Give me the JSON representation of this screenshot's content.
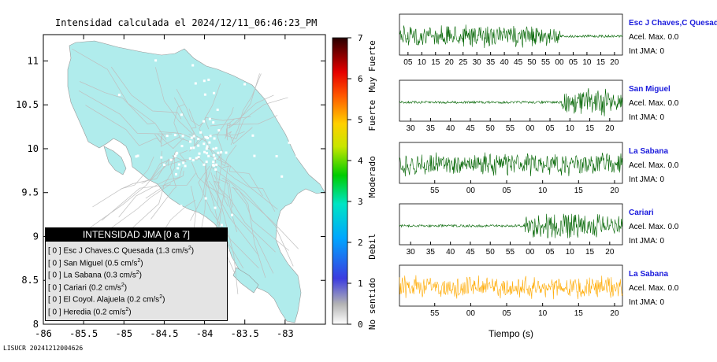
{
  "map": {
    "title": "Intensidad calculada el 2024/12/11_06:46:23_PM",
    "x_ticks": [
      "-86",
      "-85.5",
      "-85",
      "-84.5",
      "-84",
      "-83.5",
      "-83"
    ],
    "y_ticks": [
      "11",
      "10.5",
      "10",
      "9.5",
      "9",
      "8.5",
      "8"
    ]
  },
  "colorbar": {
    "ticks": [
      "7",
      "6",
      "5",
      "4",
      "3",
      "2",
      "1",
      "0"
    ],
    "labels": [
      "Muy Fuerte",
      "Fuerte",
      "Moderado",
      "Debil",
      "No sentido"
    ]
  },
  "legend": {
    "title": "INTENSIDAD JMA [0 a 7]",
    "rows": [
      {
        "jma": "[ 0 ]",
        "station": "Esc J Chaves.C Quesada",
        "accel": "(1.3 cm/s",
        "unit_exp": "2",
        "close": ")"
      },
      {
        "jma": "[ 0 ]",
        "station": "San Miguel",
        "accel": "(0.5 cm/s",
        "unit_exp": "2",
        "close": ")"
      },
      {
        "jma": "[ 0 ]",
        "station": "La Sabana",
        "accel": "(0.3 cm/s",
        "unit_exp": "2",
        "close": ")"
      },
      {
        "jma": "[ 0 ]",
        "station": "Cariari",
        "accel": "(0.2 cm/s",
        "unit_exp": "2",
        "close": ")"
      },
      {
        "jma": "[ 0 ]",
        "station": "El Coyol. Alajuela",
        "accel": "(0.2 cm/s",
        "unit_exp": "2",
        "close": ")"
      },
      {
        "jma": "[ 0 ]",
        "station": "Heredia",
        "accel": "(0.2 cm/s",
        "unit_exp": "2",
        "close": ")"
      }
    ]
  },
  "traces": [
    {
      "name": "Esc J Chaves,C Quesada",
      "accel": "Acel. Max. 0.0",
      "jma": "Int JMA: 0",
      "color": "#006400",
      "ticks": [
        "05",
        "10",
        "15",
        "20",
        "25",
        "30",
        "35",
        "40",
        "45",
        "50",
        "55",
        "00",
        "05",
        "10",
        "15",
        "20"
      ]
    },
    {
      "name": "San Miguel",
      "accel": "Acel. Max. 0.0",
      "jma": "Int JMA: 0",
      "color": "#006400",
      "ticks": [
        "30",
        "35",
        "40",
        "45",
        "50",
        "55",
        "00",
        "05",
        "10",
        "15",
        "20"
      ]
    },
    {
      "name": "La Sabana",
      "accel": "Acel. Max. 0.0",
      "jma": "Int JMA: 0",
      "color": "#006400",
      "ticks": [
        "55",
        "00",
        "05",
        "10",
        "15",
        "20"
      ]
    },
    {
      "name": "Cariari",
      "accel": "Acel. Max. 0.0",
      "jma": "Int JMA: 0",
      "color": "#006400",
      "ticks": [
        "30",
        "35",
        "40",
        "45",
        "50",
        "55",
        "00",
        "05",
        "10",
        "15",
        "20"
      ]
    },
    {
      "name": "La Sabana",
      "accel": "Acel. Max. 0.0",
      "jma": "Int JMA: 0",
      "color": "#ffaa00",
      "ticks": [
        "55",
        "00",
        "05",
        "10",
        "15",
        "20"
      ]
    }
  ],
  "xlabel": "Tiempo (s)",
  "footer": "LISUCR 20241212004626",
  "chart_data": [
    {
      "type": "heatmap",
      "title": "Intensidad calculada el 2024/12/11_06:46:23_PM",
      "xlim": [
        -86,
        -82.5
      ],
      "ylim": [
        8,
        11.3
      ],
      "colorbar_range": [
        0,
        7
      ],
      "colorbar_labels": [
        "No sentido",
        "Debil",
        "Moderado",
        "Fuerte",
        "Muy Fuerte"
      ],
      "fill_intensity": 0
    },
    {
      "type": "line",
      "series": [
        {
          "name": "Esc J Chaves,C Quesada",
          "peak_accel_cm_s2": 1.3,
          "jma": 0
        },
        {
          "name": "San Miguel",
          "peak_accel_cm_s2": 0.5,
          "jma": 0
        },
        {
          "name": "La Sabana",
          "peak_accel_cm_s2": 0.3,
          "jma": 0
        },
        {
          "name": "Cariari",
          "peak_accel_cm_s2": 0.2,
          "jma": 0
        },
        {
          "name": "El Coyol. Alajuela",
          "peak_accel_cm_s2": 0.2,
          "jma": 0
        },
        {
          "name": "Heredia",
          "peak_accel_cm_s2": 0.2,
          "jma": 0
        }
      ],
      "xlabel": "Tiempo (s)"
    }
  ]
}
